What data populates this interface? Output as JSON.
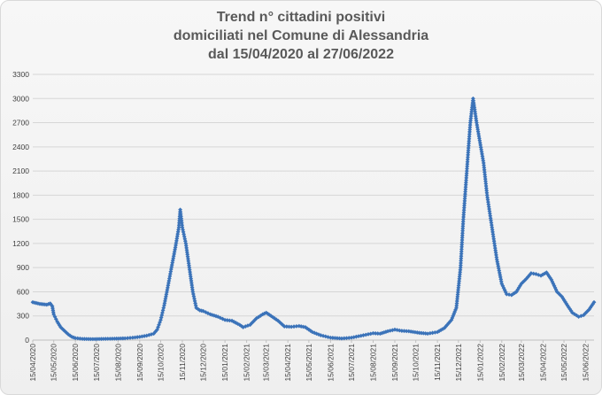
{
  "chart": {
    "title_lines": [
      "Trend n° cittadini positivi",
      "domiciliati nel Comune di Alessandria",
      "dal 15/04/2020 al 27/06/2022"
    ],
    "line_color": "#3b73b9",
    "marker_color": "#3b73b9",
    "grid_color": "#d6d6d6"
  },
  "chart_data": {
    "type": "line",
    "title": "Trend n° cittadini positivi domiciliati nel Comune di Alessandria dal 15/04/2020 al 27/06/2022",
    "xlabel": "",
    "ylabel": "",
    "ylim": [
      0,
      3300
    ],
    "yticks": [
      0,
      300,
      600,
      900,
      1200,
      1500,
      1800,
      2100,
      2400,
      2700,
      3000,
      3300
    ],
    "x_tick_labels": [
      "15/04/2020",
      "15/05/2020",
      "15/06/2020",
      "15/07/2020",
      "15/08/2020",
      "15/09/2020",
      "15/10/2020",
      "15/11/2020",
      "15/12/2020",
      "15/01/2021",
      "15/02/2021",
      "15/03/2021",
      "15/04/2021",
      "15/05/2021",
      "15/06/2021",
      "15/07/2021",
      "15/08/2021",
      "15/09/2021",
      "15/10/2021",
      "15/11/2021",
      "15/12/2021",
      "15/01/2022",
      "15/02/2022",
      "15/03/2022",
      "15/04/2022",
      "15/05/2022",
      "15/06/2022"
    ],
    "grid": true,
    "legend": "none",
    "series": [
      {
        "points": [
          [
            "2020-04-15",
            470
          ],
          [
            "2020-04-20",
            460
          ],
          [
            "2020-04-25",
            450
          ],
          [
            "2020-04-30",
            445
          ],
          [
            "2020-05-05",
            440
          ],
          [
            "2020-05-10",
            455
          ],
          [
            "2020-05-13",
            420
          ],
          [
            "2020-05-15",
            320
          ],
          [
            "2020-05-20",
            230
          ],
          [
            "2020-05-25",
            160
          ],
          [
            "2020-05-31",
            110
          ],
          [
            "2020-06-05",
            70
          ],
          [
            "2020-06-10",
            40
          ],
          [
            "2020-06-15",
            25
          ],
          [
            "2020-06-25",
            15
          ],
          [
            "2020-07-10",
            12
          ],
          [
            "2020-07-25",
            15
          ],
          [
            "2020-08-10",
            18
          ],
          [
            "2020-08-25",
            22
          ],
          [
            "2020-09-05",
            30
          ],
          [
            "2020-09-15",
            40
          ],
          [
            "2020-09-25",
            55
          ],
          [
            "2020-10-05",
            80
          ],
          [
            "2020-10-10",
            130
          ],
          [
            "2020-10-15",
            250
          ],
          [
            "2020-10-20",
            430
          ],
          [
            "2020-10-25",
            650
          ],
          [
            "2020-10-30",
            880
          ],
          [
            "2020-11-05",
            1150
          ],
          [
            "2020-11-10",
            1400
          ],
          [
            "2020-11-12",
            1620
          ],
          [
            "2020-11-15",
            1400
          ],
          [
            "2020-11-20",
            1200
          ],
          [
            "2020-11-25",
            900
          ],
          [
            "2020-11-30",
            600
          ],
          [
            "2020-12-05",
            400
          ],
          [
            "2020-12-10",
            370
          ],
          [
            "2020-12-15",
            360
          ],
          [
            "2020-12-25",
            320
          ],
          [
            "2021-01-05",
            290
          ],
          [
            "2021-01-15",
            250
          ],
          [
            "2021-01-25",
            240
          ],
          [
            "2021-02-05",
            190
          ],
          [
            "2021-02-10",
            160
          ],
          [
            "2021-02-20",
            190
          ],
          [
            "2021-03-01",
            270
          ],
          [
            "2021-03-10",
            320
          ],
          [
            "2021-03-15",
            340
          ],
          [
            "2021-03-22",
            300
          ],
          [
            "2021-04-01",
            240
          ],
          [
            "2021-04-10",
            170
          ],
          [
            "2021-04-20",
            165
          ],
          [
            "2021-05-01",
            175
          ],
          [
            "2021-05-10",
            160
          ],
          [
            "2021-05-20",
            100
          ],
          [
            "2021-06-01",
            60
          ],
          [
            "2021-06-15",
            30
          ],
          [
            "2021-07-01",
            20
          ],
          [
            "2021-07-15",
            30
          ],
          [
            "2021-08-01",
            60
          ],
          [
            "2021-08-15",
            85
          ],
          [
            "2021-08-25",
            80
          ],
          [
            "2021-09-05",
            110
          ],
          [
            "2021-09-15",
            130
          ],
          [
            "2021-09-25",
            115
          ],
          [
            "2021-10-05",
            110
          ],
          [
            "2021-10-20",
            90
          ],
          [
            "2021-11-01",
            80
          ],
          [
            "2021-11-15",
            100
          ],
          [
            "2021-11-25",
            150
          ],
          [
            "2021-12-05",
            250
          ],
          [
            "2021-12-12",
            400
          ],
          [
            "2021-12-18",
            900
          ],
          [
            "2021-12-22",
            1500
          ],
          [
            "2021-12-27",
            2100
          ],
          [
            "2022-01-01",
            2700
          ],
          [
            "2022-01-05",
            3000
          ],
          [
            "2022-01-10",
            2700
          ],
          [
            "2022-01-15",
            2450
          ],
          [
            "2022-01-20",
            2200
          ],
          [
            "2022-01-25",
            1800
          ],
          [
            "2022-02-01",
            1400
          ],
          [
            "2022-02-08",
            1000
          ],
          [
            "2022-02-15",
            700
          ],
          [
            "2022-02-22",
            570
          ],
          [
            "2022-03-01",
            560
          ],
          [
            "2022-03-08",
            600
          ],
          [
            "2022-03-15",
            700
          ],
          [
            "2022-03-22",
            760
          ],
          [
            "2022-03-29",
            830
          ],
          [
            "2022-04-05",
            820
          ],
          [
            "2022-04-12",
            800
          ],
          [
            "2022-04-20",
            840
          ],
          [
            "2022-04-27",
            750
          ],
          [
            "2022-05-05",
            600
          ],
          [
            "2022-05-12",
            540
          ],
          [
            "2022-05-20",
            430
          ],
          [
            "2022-05-27",
            340
          ],
          [
            "2022-06-05",
            290
          ],
          [
            "2022-06-12",
            310
          ],
          [
            "2022-06-20",
            380
          ],
          [
            "2022-06-27",
            470
          ]
        ]
      }
    ]
  }
}
